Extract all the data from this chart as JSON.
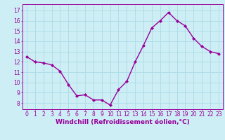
{
  "x": [
    0,
    1,
    2,
    3,
    4,
    5,
    6,
    7,
    8,
    9,
    10,
    11,
    12,
    13,
    14,
    15,
    16,
    17,
    18,
    19,
    20,
    21,
    22,
    23
  ],
  "y": [
    12.5,
    12.0,
    11.9,
    11.7,
    11.1,
    9.8,
    8.7,
    8.8,
    8.3,
    8.3,
    7.8,
    9.3,
    10.1,
    12.0,
    13.6,
    15.3,
    16.0,
    16.8,
    16.0,
    15.5,
    14.3,
    13.5,
    13.0,
    12.8
  ],
  "line_color": "#990099",
  "marker": "D",
  "marker_size": 2.0,
  "linewidth": 1.0,
  "xlabel": "Windchill (Refroidissement éolien,°C)",
  "xlabel_fontsize": 6.5,
  "ytick_labels": [
    "8",
    "9",
    "10",
    "11",
    "12",
    "13",
    "14",
    "15",
    "16",
    "17"
  ],
  "ylabel_ticks": [
    8,
    9,
    10,
    11,
    12,
    13,
    14,
    15,
    16,
    17
  ],
  "xtick_labels": [
    "0",
    "1",
    "2",
    "3",
    "4",
    "5",
    "6",
    "7",
    "8",
    "9",
    "10",
    "11",
    "12",
    "13",
    "14",
    "15",
    "16",
    "17",
    "18",
    "19",
    "20",
    "21",
    "22",
    "23"
  ],
  "ylim": [
    7.4,
    17.6
  ],
  "xlim": [
    -0.5,
    23.5
  ],
  "bg_color": "#cdeef5",
  "grid_color": "#b0dde8",
  "tick_color": "#990099",
  "label_color": "#990099",
  "tick_fontsize": 5.5,
  "xlabel_fontweight": "bold"
}
